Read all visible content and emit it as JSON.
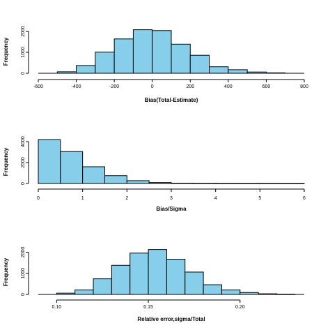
{
  "chart_data": [
    {
      "type": "bar",
      "xlabel": "Bias(Total-Estimate)",
      "ylabel": "Frequency",
      "x_ticks": [
        -600,
        -400,
        -200,
        0,
        200,
        400,
        600,
        800
      ],
      "x_tick_labels": [
        "-600",
        "-400",
        "-200",
        "0",
        "200",
        "400",
        "600",
        "800"
      ],
      "y_ticks": [
        0,
        1000,
        2000
      ],
      "y_tick_labels": [
        "0",
        "1000",
        "2000"
      ],
      "xlim": [
        -600,
        800
      ],
      "ylim": [
        0,
        2100
      ],
      "bin_edges": [
        -500,
        -400,
        -300,
        -200,
        -100,
        0,
        100,
        200,
        300,
        400,
        500,
        600,
        700
      ],
      "values": [
        70,
        370,
        1010,
        1640,
        2080,
        2040,
        1390,
        860,
        310,
        170,
        60,
        20
      ]
    },
    {
      "type": "bar",
      "xlabel": "Bias/Sigma",
      "ylabel": "Frequency",
      "x_ticks": [
        0,
        1,
        2,
        3,
        4,
        5,
        6
      ],
      "x_tick_labels": [
        "0",
        "1",
        "2",
        "3",
        "4",
        "5",
        "6"
      ],
      "y_ticks": [
        0,
        2000,
        4000
      ],
      "y_tick_labels": [
        "0",
        "2000",
        "4000"
      ],
      "xlim": [
        0,
        6
      ],
      "ylim": [
        0,
        4200
      ],
      "bin_edges": [
        0,
        0.5,
        1,
        1.5,
        2,
        2.5,
        3,
        3.5,
        4,
        4.5,
        5,
        5.5,
        6
      ],
      "values": [
        4200,
        3050,
        1600,
        750,
        270,
        90,
        30,
        12,
        6,
        3,
        2,
        1
      ]
    },
    {
      "type": "bar",
      "xlabel": "Relative error,sigma/Total",
      "ylabel": "Frequency",
      "x_ticks": [
        0.1,
        0.15,
        0.2
      ],
      "x_tick_labels": [
        "0.10",
        "0.15",
        "0.20"
      ],
      "y_ticks": [
        0,
        1000,
        2000
      ],
      "y_tick_labels": [
        "0",
        "1000",
        "2000"
      ],
      "xlim": [
        0.09,
        0.235
      ],
      "ylim": [
        0,
        2150
      ],
      "bin_edges": [
        0.09,
        0.1,
        0.11,
        0.12,
        0.13,
        0.14,
        0.15,
        0.16,
        0.17,
        0.18,
        0.19,
        0.2,
        0.21,
        0.22,
        0.23
      ],
      "values": [
        0,
        60,
        210,
        740,
        1380,
        1960,
        2130,
        1670,
        1060,
        460,
        210,
        90,
        30,
        10
      ]
    }
  ]
}
